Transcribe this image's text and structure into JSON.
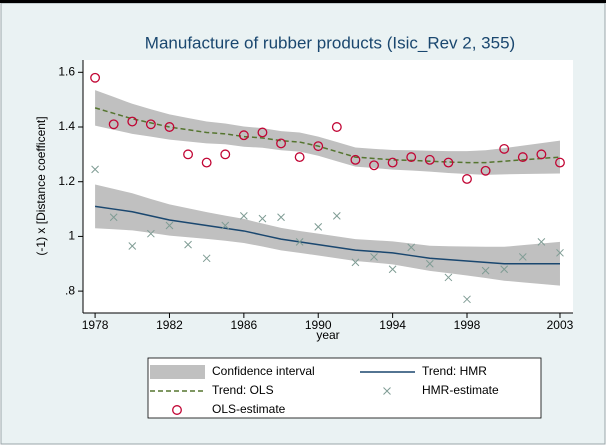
{
  "chart_data": {
    "type": "line",
    "title": "Manufacture of rubber products  (Isic_Rev 2, 355)",
    "x_label": "year",
    "y_label": "(-1) x [Distance coefficent]",
    "x": [
      1978,
      1979,
      1980,
      1981,
      1982,
      1983,
      1984,
      1985,
      1986,
      1987,
      1988,
      1989,
      1990,
      1991,
      1992,
      1993,
      1994,
      1995,
      1996,
      1997,
      1998,
      1999,
      2000,
      2001,
      2002,
      2003
    ],
    "xlim": [
      1977.35,
      2003.7
    ],
    "xticks": [
      1978,
      1982,
      1986,
      1990,
      1994,
      1998,
      2003
    ],
    "ylim": [
      0.72,
      1.645
    ],
    "yticks": [
      {
        "value": 0.8,
        "label": ".8"
      },
      1,
      1.2,
      1.4,
      1.6
    ],
    "grid": false,
    "series": [
      {
        "name": "Confidence interval",
        "kind": "band",
        "color": "#c0c0c0",
        "bands": [
          {
            "upper": [
              1.535,
              1.51,
              1.485,
              1.465,
              1.446,
              1.433,
              1.42,
              1.413,
              1.402,
              1.396,
              1.385,
              1.38,
              1.365,
              1.345,
              1.325,
              1.32,
              1.316,
              1.315,
              1.313,
              1.312,
              1.312,
              1.315,
              1.323,
              1.332,
              1.341,
              1.35
            ],
            "lower": [
              1.405,
              1.39,
              1.375,
              1.365,
              1.354,
              1.347,
              1.34,
              1.337,
              1.328,
              1.324,
              1.315,
              1.31,
              1.295,
              1.275,
              1.255,
              1.25,
              1.244,
              1.241,
              1.237,
              1.232,
              1.228,
              1.225,
              1.227,
              1.228,
              1.229,
              1.23
            ]
          },
          {
            "upper": [
              1.19,
              1.174,
              1.158,
              1.137,
              1.117,
              1.103,
              1.089,
              1.076,
              1.064,
              1.047,
              1.031,
              1.02,
              1.01,
              1.0,
              0.99,
              0.986,
              0.982,
              0.974,
              0.966,
              0.964,
              0.963,
              0.962,
              0.962,
              0.968,
              0.974,
              0.98
            ],
            "lower": [
              1.03,
              1.026,
              1.022,
              1.013,
              1.003,
              0.997,
              0.991,
              0.984,
              0.976,
              0.963,
              0.949,
              0.94,
              0.93,
              0.92,
              0.91,
              0.904,
              0.898,
              0.886,
              0.874,
              0.866,
              0.857,
              0.848,
              0.838,
              0.832,
              0.826,
              0.82
            ]
          }
        ]
      },
      {
        "name": "Trend: HMR",
        "kind": "line",
        "style": "solid",
        "color": "#1a476f",
        "values": [
          1.11,
          1.1,
          1.09,
          1.075,
          1.06,
          1.05,
          1.04,
          1.03,
          1.02,
          1.005,
          0.99,
          0.98,
          0.97,
          0.96,
          0.95,
          0.945,
          0.94,
          0.93,
          0.92,
          0.915,
          0.91,
          0.905,
          0.9,
          0.9,
          0.9,
          0.9
        ]
      },
      {
        "name": "Trend: OLS",
        "kind": "line",
        "style": "dashed",
        "color": "#55752f",
        "values": [
          1.47,
          1.45,
          1.43,
          1.415,
          1.4,
          1.39,
          1.38,
          1.375,
          1.365,
          1.36,
          1.35,
          1.345,
          1.33,
          1.31,
          1.29,
          1.285,
          1.28,
          1.278,
          1.275,
          1.272,
          1.27,
          1.27,
          1.275,
          1.28,
          1.285,
          1.29
        ]
      },
      {
        "name": "HMR-estimate",
        "kind": "scatter",
        "marker": "x",
        "color": "#7f9c94",
        "values": [
          1.245,
          1.07,
          0.965,
          1.01,
          1.04,
          0.97,
          0.92,
          1.04,
          1.075,
          1.065,
          1.07,
          0.98,
          1.035,
          1.075,
          0.905,
          0.925,
          0.88,
          0.96,
          0.9,
          0.85,
          0.77,
          0.875,
          0.88,
          0.925,
          0.98,
          0.94
        ]
      },
      {
        "name": "OLS-estimate",
        "kind": "scatter",
        "marker": "circle",
        "color": "#c10534",
        "values": [
          1.58,
          1.41,
          1.42,
          1.41,
          1.4,
          1.3,
          1.27,
          1.3,
          1.37,
          1.38,
          1.34,
          1.29,
          1.33,
          1.4,
          1.28,
          1.26,
          1.27,
          1.29,
          1.28,
          1.27,
          1.21,
          1.24,
          1.32,
          1.29,
          1.3,
          1.27
        ]
      }
    ]
  }
}
